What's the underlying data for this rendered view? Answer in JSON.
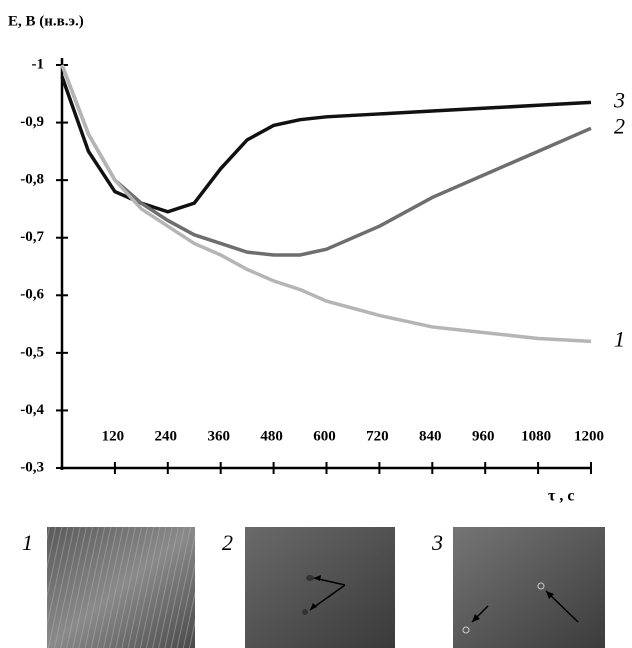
{
  "chart_data": {
    "type": "line",
    "ylabel": "E, B (н.в.э.)",
    "xlabel": "τ , c",
    "x": [
      0,
      60,
      120,
      180,
      240,
      300,
      360,
      420,
      480,
      540,
      600,
      720,
      840,
      960,
      1080,
      1200
    ],
    "series": [
      {
        "name": "3",
        "color": "#111111",
        "values": [
          -0.98,
          -0.85,
          -0.78,
          -0.76,
          -0.745,
          -0.76,
          -0.82,
          -0.87,
          -0.895,
          -0.905,
          -0.91,
          -0.915,
          -0.92,
          -0.925,
          -0.93,
          -0.935
        ]
      },
      {
        "name": "2",
        "color": "#6e6e6e",
        "values": [
          -1.0,
          -0.88,
          -0.8,
          -0.76,
          -0.73,
          -0.705,
          -0.69,
          -0.675,
          -0.67,
          -0.67,
          -0.68,
          -0.72,
          -0.77,
          -0.81,
          -0.85,
          -0.89
        ]
      },
      {
        "name": "1",
        "color": "#b5b5b5",
        "values": [
          -1.0,
          -0.88,
          -0.8,
          -0.75,
          -0.72,
          -0.69,
          -0.67,
          -0.645,
          -0.625,
          -0.61,
          -0.59,
          -0.565,
          -0.545,
          -0.535,
          -0.525,
          -0.52
        ]
      }
    ],
    "xlim": [
      0,
      1200
    ],
    "xticks": [
      120,
      240,
      360,
      480,
      600,
      720,
      840,
      960,
      1080,
      1200
    ],
    "ylim": [
      -0.3,
      -1
    ],
    "yticks": [
      -1,
      {
        "value": -0.9,
        "label": "-0,9"
      },
      {
        "value": -0.8,
        "label": "-0,8"
      },
      {
        "value": -0.7,
        "label": "-0,7"
      },
      {
        "value": -0.6,
        "label": "-0,6"
      },
      {
        "value": -0.5,
        "label": "-0,5"
      },
      {
        "value": -0.4,
        "label": "-0,4"
      },
      {
        "value": -0.3,
        "label": "-0,3"
      }
    ]
  },
  "panels": [
    {
      "label": "1"
    },
    {
      "label": "2"
    },
    {
      "label": "3"
    }
  ]
}
